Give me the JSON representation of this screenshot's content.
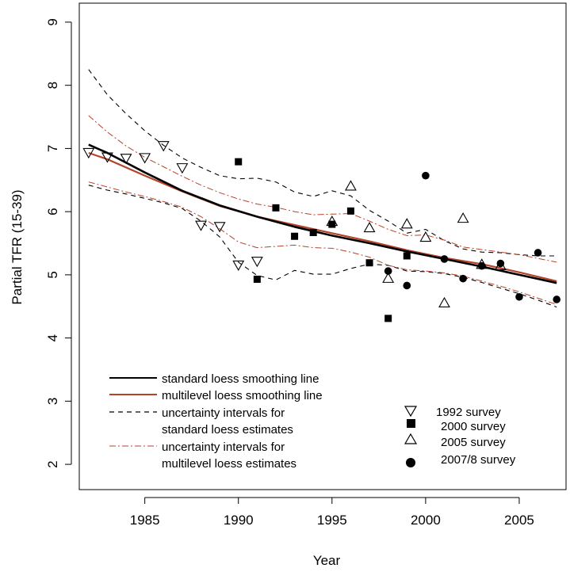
{
  "chart_data": {
    "type": "scatter",
    "xlabel": "Year",
    "ylabel": "Partial TFR (15-39)",
    "xlim": [
      1981.5,
      2007.5
    ],
    "ylim": [
      1.6,
      9.3
    ],
    "x_ticks": [
      1985,
      1990,
      1995,
      2000,
      2005
    ],
    "y_ticks": [
      2,
      3,
      4,
      5,
      6,
      7,
      8,
      9
    ],
    "x_tick_labels": [
      "1985",
      "1990",
      "1995",
      "2000",
      "2005"
    ],
    "y_tick_labels": [
      "2",
      "3",
      "4",
      "5",
      "6",
      "7",
      "8",
      "9"
    ],
    "grid": false,
    "colors": {
      "standard": "#000000",
      "multilevel": "#b5432a"
    },
    "legend_lines": [
      {
        "style": "solid-black",
        "text": [
          "standard loess smoothing line"
        ]
      },
      {
        "style": "solid-red",
        "text": [
          "multilevel loess smoothing line"
        ]
      },
      {
        "style": "dashed-black",
        "text": [
          "uncertainty intervals for",
          "standard loess estimates"
        ]
      },
      {
        "style": "dashdot-red",
        "text": [
          "uncertainty intervals for",
          "multilevel loess estimates"
        ]
      }
    ],
    "legend_points": [
      {
        "marker": "triangle-down",
        "text": "1992 survey"
      },
      {
        "marker": "square",
        "text": "2000 survey"
      },
      {
        "marker": "triangle-up",
        "text": "2005 survey"
      },
      {
        "marker": "circle",
        "text": "2007/8 survey"
      }
    ],
    "points": {
      "survey_1992": {
        "x": [
          1982,
          1983,
          1984,
          1985,
          1986,
          1987,
          1988,
          1989,
          1990,
          1991
        ],
        "y": [
          6.93,
          6.86,
          6.84,
          6.85,
          7.04,
          6.69,
          5.78,
          5.76,
          5.15,
          5.21
        ]
      },
      "survey_2000": {
        "x": [
          1990,
          1991,
          1992,
          1993,
          1994,
          1995,
          1996,
          1997,
          1998,
          1999
        ],
        "y": [
          6.79,
          4.93,
          6.06,
          5.61,
          5.67,
          5.8,
          6.01,
          5.19,
          4.31,
          5.3
        ]
      },
      "survey_2005": {
        "x": [
          1995,
          1996,
          1997,
          1998,
          1999,
          2000,
          2001,
          2002,
          2003,
          2004
        ],
        "y": [
          5.85,
          6.41,
          5.75,
          4.95,
          5.81,
          5.6,
          4.56,
          5.9,
          5.17,
          5.15
        ]
      },
      "survey_2007_8": {
        "x": [
          1998,
          1999,
          2000,
          2001,
          2002,
          2003,
          2004,
          2005,
          2006,
          2007
        ],
        "y": [
          5.06,
          4.83,
          6.57,
          5.25,
          4.94,
          5.14,
          5.18,
          4.65,
          5.35,
          4.61
        ]
      }
    },
    "lines": {
      "standard_loess": {
        "x": [
          1982,
          1983,
          1985,
          1987,
          1989,
          1991,
          1993,
          1995,
          1997,
          1999,
          2001,
          2003,
          2005,
          2007
        ],
        "y": [
          7.06,
          6.93,
          6.62,
          6.33,
          6.1,
          5.92,
          5.76,
          5.62,
          5.5,
          5.37,
          5.25,
          5.13,
          5.0,
          4.87
        ]
      },
      "multilevel_loess": {
        "x": [
          1982,
          1983,
          1985,
          1987,
          1989,
          1991,
          1993,
          1995,
          1997,
          1999,
          2001,
          2003,
          2005,
          2007
        ],
        "y": [
          6.93,
          6.83,
          6.57,
          6.32,
          6.09,
          5.92,
          5.79,
          5.66,
          5.53,
          5.39,
          5.27,
          5.17,
          5.04,
          4.9
        ]
      },
      "standard_upper": {
        "x": [
          1982,
          1983,
          1984,
          1985,
          1986,
          1987,
          1988,
          1989,
          1990,
          1991,
          1992,
          1993,
          1994,
          1995,
          1996,
          1997,
          1998,
          1999,
          2000,
          2001,
          2002,
          2003,
          2004,
          2005,
          2006,
          2007
        ],
        "y": [
          8.25,
          7.85,
          7.55,
          7.28,
          7.05,
          6.85,
          6.7,
          6.57,
          6.52,
          6.53,
          6.47,
          6.31,
          6.24,
          6.33,
          6.25,
          6.02,
          5.85,
          5.66,
          5.72,
          5.54,
          5.41,
          5.36,
          5.35,
          5.32,
          5.3,
          5.3
        ]
      },
      "standard_lower": {
        "x": [
          1982,
          1983,
          1984,
          1985,
          1986,
          1987,
          1988,
          1989,
          1990,
          1991,
          1992,
          1993,
          1994,
          1995,
          1996,
          1997,
          1998,
          1999,
          2000,
          2001,
          2002,
          2003,
          2004,
          2005,
          2006,
          2007
        ],
        "y": [
          6.42,
          6.34,
          6.28,
          6.21,
          6.14,
          6.05,
          5.85,
          5.6,
          5.2,
          4.99,
          4.92,
          5.07,
          5.01,
          5.01,
          5.1,
          5.17,
          5.15,
          5.06,
          5.05,
          5.02,
          4.96,
          4.88,
          4.79,
          4.7,
          4.6,
          4.49
        ]
      },
      "multilevel_upper": {
        "x": [
          1982,
          1983,
          1984,
          1985,
          1986,
          1987,
          1988,
          1989,
          1990,
          1991,
          1992,
          1993,
          1994,
          1995,
          1996,
          1997,
          1998,
          1999,
          2000,
          2001,
          2002,
          2003,
          2004,
          2005,
          2006,
          2007
        ],
        "y": [
          7.52,
          7.26,
          7.04,
          6.86,
          6.71,
          6.56,
          6.42,
          6.3,
          6.2,
          6.12,
          6.07,
          6.0,
          5.95,
          5.96,
          5.97,
          5.85,
          5.72,
          5.62,
          5.63,
          5.55,
          5.44,
          5.4,
          5.36,
          5.32,
          5.26,
          5.2
        ]
      },
      "multilevel_lower": {
        "x": [
          1982,
          1983,
          1984,
          1985,
          1986,
          1987,
          1988,
          1989,
          1990,
          1991,
          1992,
          1993,
          1994,
          1995,
          1996,
          1997,
          1998,
          1999,
          2000,
          2001,
          2002,
          2003,
          2004,
          2005,
          2006,
          2007
        ],
        "y": [
          6.47,
          6.39,
          6.31,
          6.24,
          6.16,
          6.07,
          5.92,
          5.73,
          5.52,
          5.43,
          5.45,
          5.47,
          5.43,
          5.42,
          5.36,
          5.28,
          5.15,
          5.08,
          5.06,
          5.03,
          4.98,
          4.9,
          4.82,
          4.73,
          4.63,
          4.53
        ]
      }
    }
  }
}
